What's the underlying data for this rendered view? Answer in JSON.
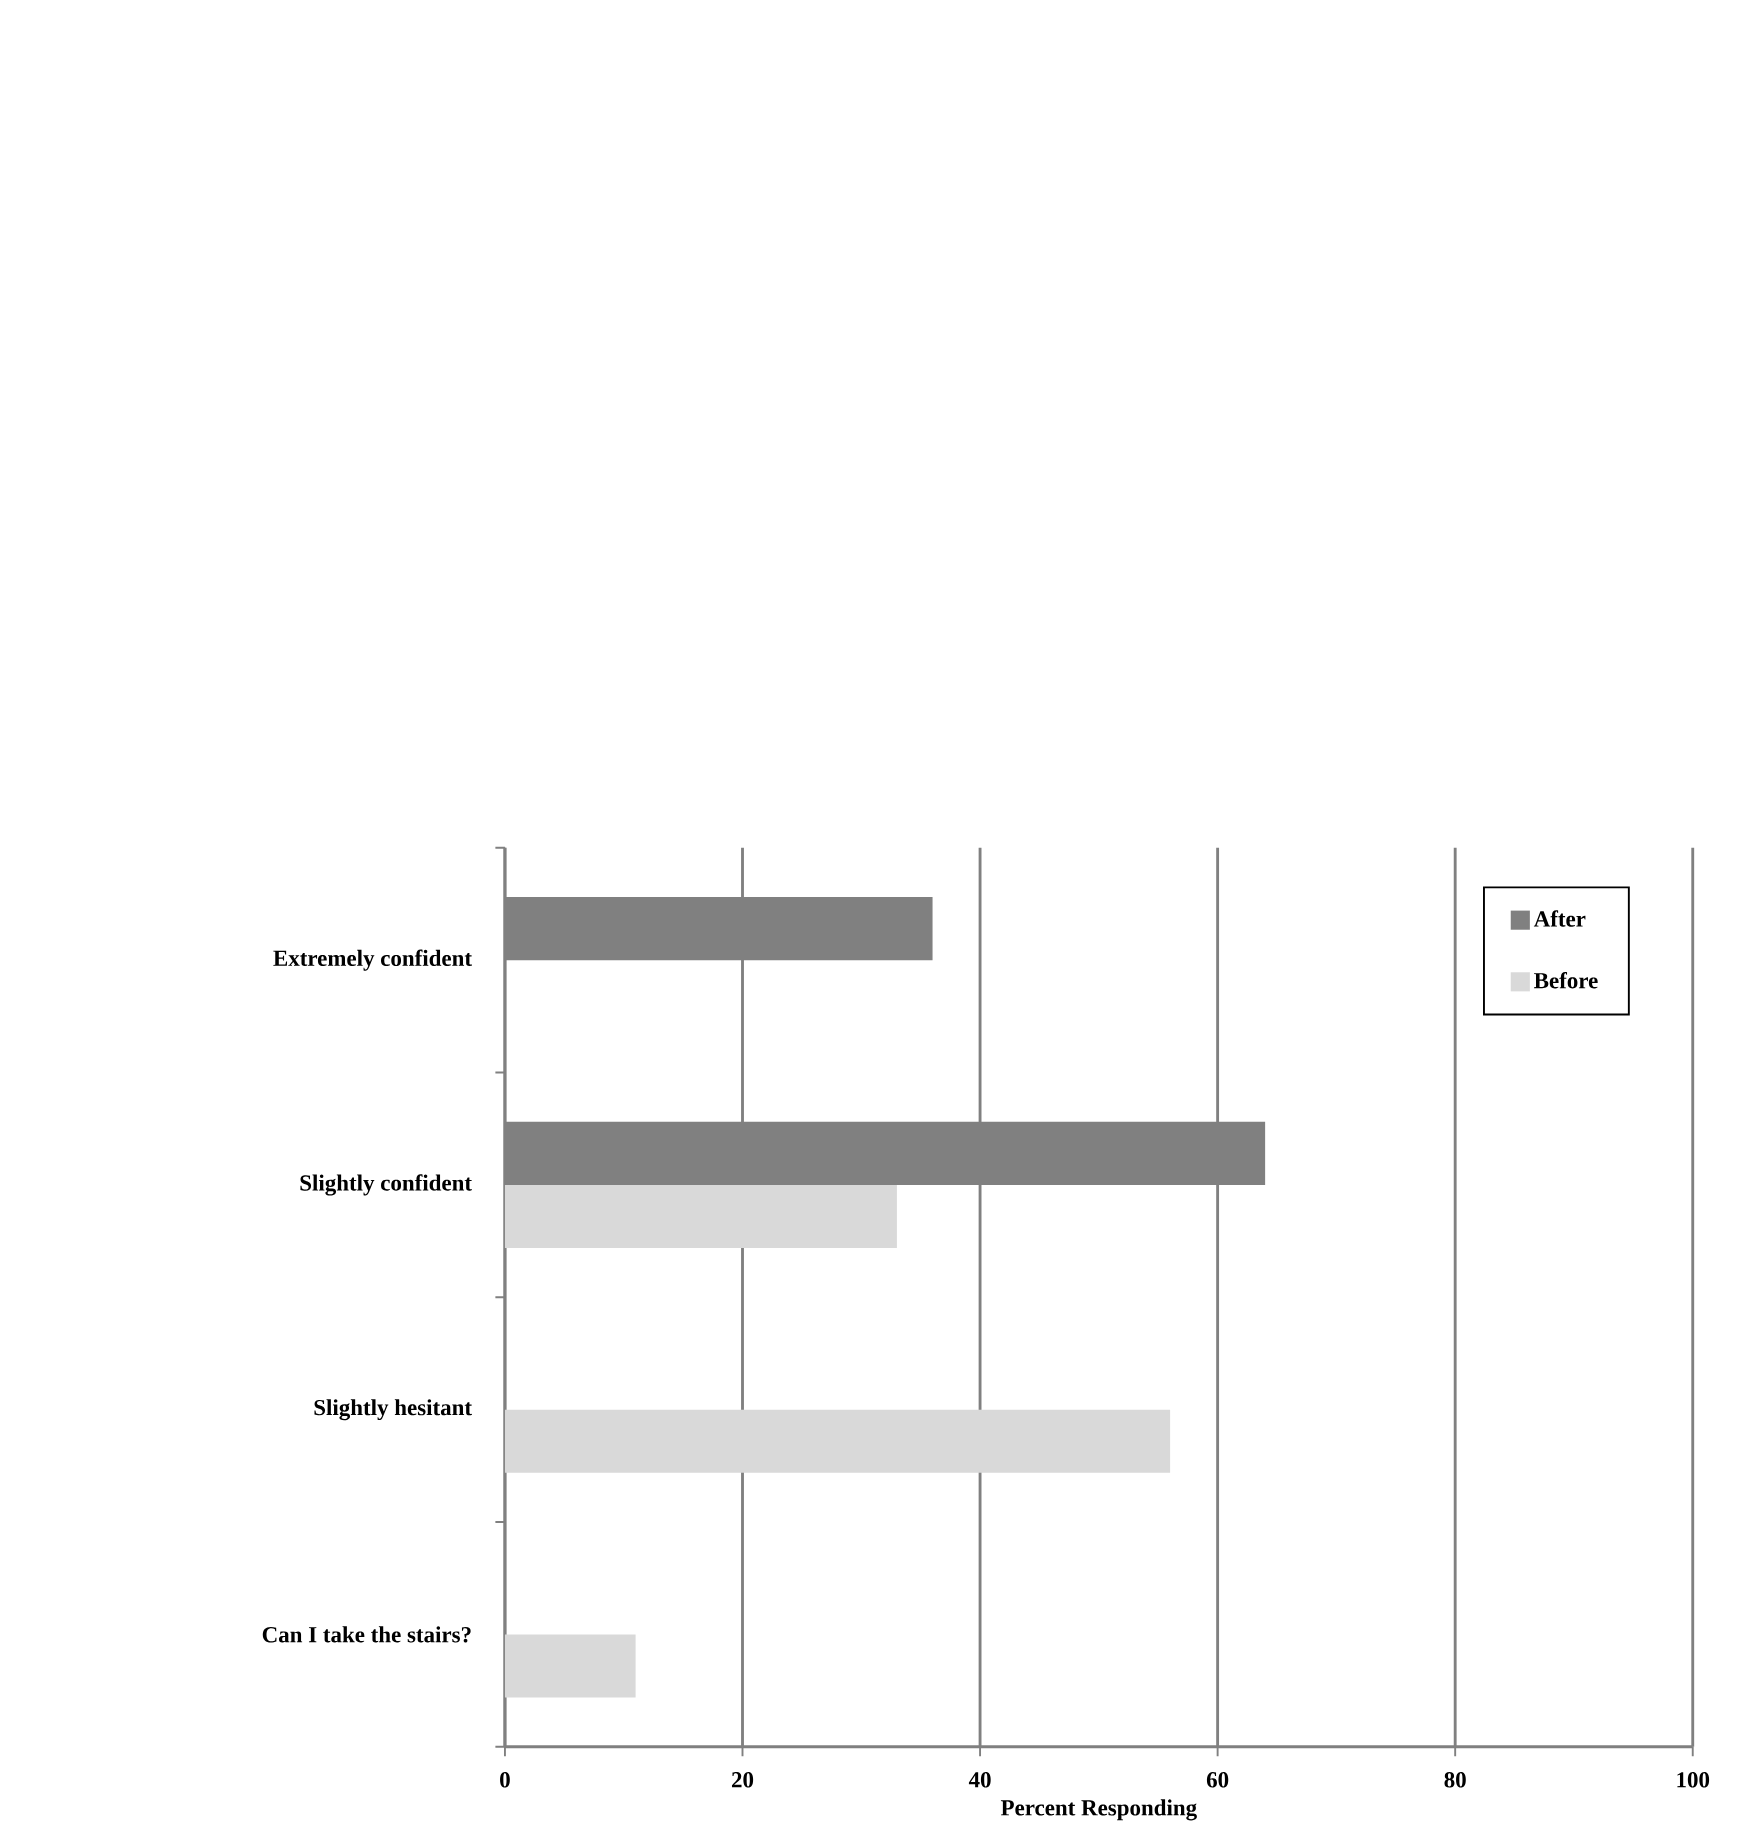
{
  "chart_data": {
    "type": "bar",
    "orientation": "horizontal",
    "categories": [
      "Extremely confident",
      "Slightly confident",
      "Slightly hesitant",
      "Can I take the stairs?"
    ],
    "series": [
      {
        "name": "After",
        "color": "#808080",
        "values": [
          36,
          64,
          null,
          null
        ]
      },
      {
        "name": "Before",
        "color": "#d9d9d9",
        "values": [
          null,
          33,
          56,
          11
        ]
      }
    ],
    "xlabel": "Percent Responding",
    "xlim": [
      0,
      100
    ],
    "xticks": [
      0,
      20,
      40,
      60,
      80,
      100
    ],
    "grid": "x",
    "legend": "top right"
  }
}
